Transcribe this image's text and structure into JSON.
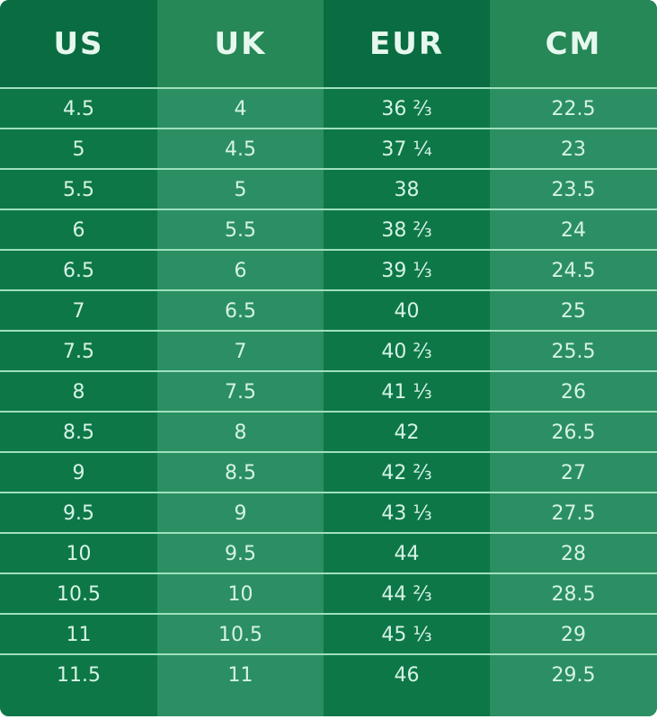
{
  "colors": {
    "dark_column": "#0d7748",
    "light_column": "#2b8f63",
    "text": "#d6f3e4",
    "divider": "#9fe0bf"
  },
  "chart_data": {
    "type": "table",
    "columns": [
      "US",
      "UK",
      "EUR",
      "CM"
    ],
    "rows": [
      [
        "4.5",
        "4",
        "36 ⅔",
        "22.5"
      ],
      [
        "5",
        "4.5",
        "37 ¼",
        "23"
      ],
      [
        "5.5",
        "5",
        "38",
        "23.5"
      ],
      [
        "6",
        "5.5",
        "38 ⅔",
        "24"
      ],
      [
        "6.5",
        "6",
        "39 ⅓",
        "24.5"
      ],
      [
        "7",
        "6.5",
        "40",
        "25"
      ],
      [
        "7.5",
        "7",
        "40 ⅔",
        "25.5"
      ],
      [
        "8",
        "7.5",
        "41 ⅓",
        "26"
      ],
      [
        "8.5",
        "8",
        "42",
        "26.5"
      ],
      [
        "9",
        "8.5",
        "42 ⅔",
        "27"
      ],
      [
        "9.5",
        "9",
        "43 ⅓",
        "27.5"
      ],
      [
        "10",
        "9.5",
        "44",
        "28"
      ],
      [
        "10.5",
        "10",
        "44 ⅔",
        "28.5"
      ],
      [
        "11",
        "10.5",
        "45 ⅓",
        "29"
      ],
      [
        "11.5",
        "11",
        "46",
        "29.5"
      ]
    ]
  }
}
